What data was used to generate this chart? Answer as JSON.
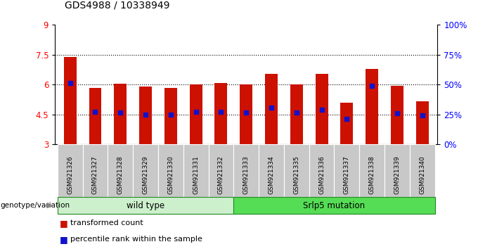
{
  "title": "GDS4988 / 10338949",
  "samples": [
    "GSM921326",
    "GSM921327",
    "GSM921328",
    "GSM921329",
    "GSM921330",
    "GSM921331",
    "GSM921332",
    "GSM921333",
    "GSM921334",
    "GSM921335",
    "GSM921336",
    "GSM921337",
    "GSM921338",
    "GSM921339",
    "GSM921340"
  ],
  "bar_values": [
    7.4,
    5.85,
    6.05,
    5.9,
    5.85,
    6.0,
    6.1,
    6.0,
    6.55,
    6.0,
    6.55,
    5.1,
    6.8,
    5.95,
    5.15
  ],
  "percentile_values": [
    6.1,
    4.65,
    4.6,
    4.5,
    4.5,
    4.65,
    4.65,
    4.6,
    4.85,
    4.6,
    4.75,
    4.3,
    5.95,
    4.55,
    4.45
  ],
  "bar_color": "#cc1100",
  "percentile_color": "#1111cc",
  "ylim_left": [
    3,
    9
  ],
  "ylim_right": [
    0,
    100
  ],
  "yticks_left": [
    3,
    4.5,
    6,
    7.5,
    9
  ],
  "yticks_right": [
    0,
    25,
    50,
    75,
    100
  ],
  "ytick_labels_left": [
    "3",
    "4.5",
    "6",
    "7.5",
    "9"
  ],
  "ytick_labels_right": [
    "0%",
    "25%",
    "50%",
    "75%",
    "100%"
  ],
  "hlines": [
    4.5,
    6.0,
    7.5
  ],
  "group1_label": "wild type",
  "group2_label": "Srlp5 mutation",
  "group1_count": 7,
  "group2_count": 8,
  "genotype_label": "genotype/variation",
  "legend_bar": "transformed count",
  "legend_pct": "percentile rank within the sample",
  "fig_bg": "#ffffff",
  "plot_bg": "#ffffff",
  "tick_area_bg": "#c8c8c8",
  "group1_bg": "#ccf0cc",
  "group2_bg": "#55dd55",
  "group_border": "#228822",
  "bar_width": 0.5
}
